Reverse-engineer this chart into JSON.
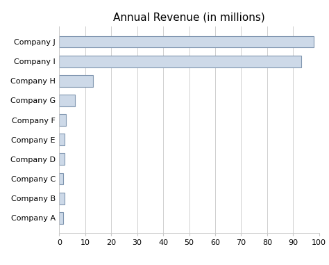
{
  "title": "Annual Revenue (in millions)",
  "categories": [
    "Company A",
    "Company B",
    "Company C",
    "Company D",
    "Company E",
    "Company F",
    "Company G",
    "Company H",
    "Company I",
    "Company J"
  ],
  "values": [
    1.5,
    2.0,
    1.5,
    2.0,
    2.0,
    2.5,
    6.0,
    13.0,
    93.0,
    98.0
  ],
  "bar_color": "#cdd9e8",
  "bar_edge_color": "#8096b0",
  "background_color": "#ffffff",
  "xlim": [
    0,
    100
  ],
  "xticks": [
    0,
    10,
    20,
    30,
    40,
    50,
    60,
    70,
    80,
    90,
    100
  ],
  "grid_color": "#c8c8c8",
  "title_fontsize": 11,
  "tick_fontsize": 8,
  "bar_height": 0.6,
  "linewidth": 0.8
}
